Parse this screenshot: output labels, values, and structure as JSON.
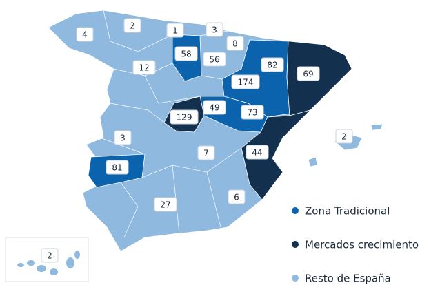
{
  "labels": [
    4,
    2,
    1,
    3,
    8,
    58,
    56,
    82,
    69,
    12,
    174,
    49,
    129,
    73,
    3,
    7,
    44,
    2,
    81,
    27,
    6,
    2
  ],
  "legend": [
    {
      "name": "Zona Tradicional",
      "color": "#0b63ae"
    },
    {
      "name": "Mercados crecimiento",
      "color": "#13304f"
    },
    {
      "name": "Resto de España",
      "color": "#8fb9df"
    }
  ]
}
